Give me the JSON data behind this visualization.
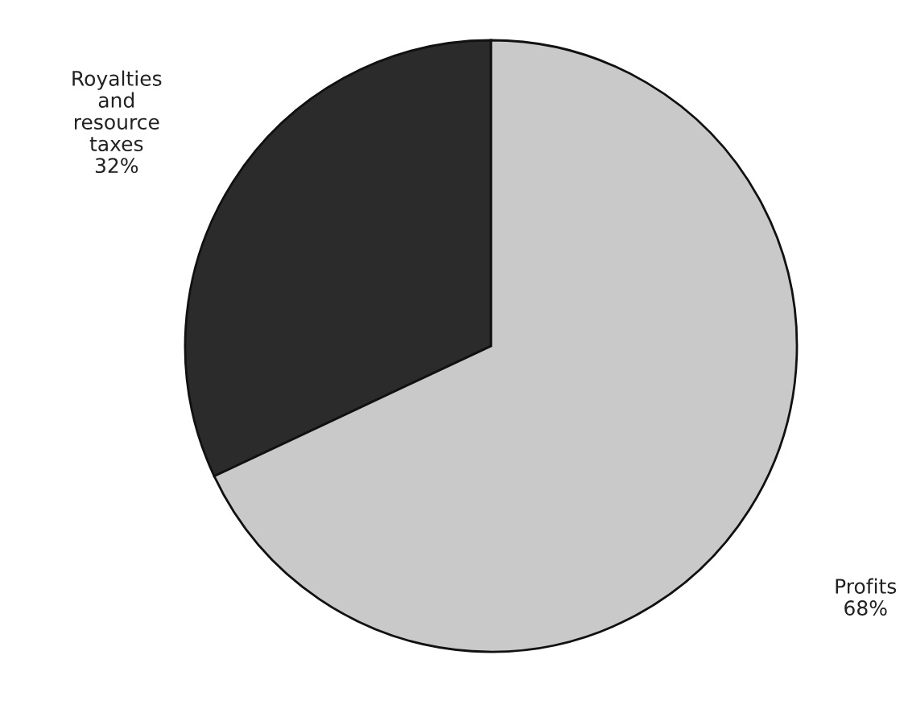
{
  "chart_data": {
    "type": "pie",
    "categories": [
      "Royalties and resource taxes",
      "Profits"
    ],
    "values": [
      32,
      68
    ],
    "colors": [
      "#2b2b2b",
      "#c9c9c9"
    ],
    "value_labels": [
      "32%",
      "68%"
    ],
    "legend": false
  }
}
